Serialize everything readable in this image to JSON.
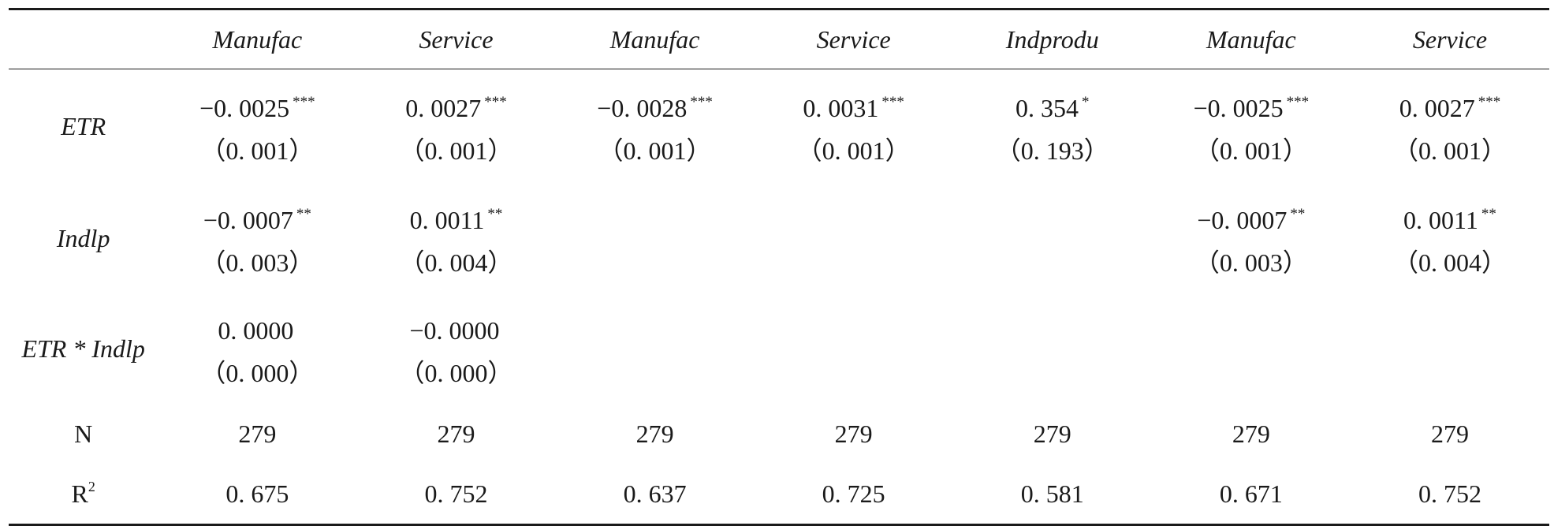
{
  "header": {
    "columns": [
      "",
      "Manufac",
      "Service",
      "Manufac",
      "Service",
      "Indprodu",
      "Manufac",
      "Service"
    ]
  },
  "rows": [
    {
      "label": "ETR",
      "cells": [
        {
          "coef": "−0. 0025",
          "stars": "***",
          "se": "（0. 001）"
        },
        {
          "coef": "0. 0027",
          "stars": "***",
          "se": "（0. 001）"
        },
        {
          "coef": "−0. 0028",
          "stars": "***",
          "se": "（0. 001）"
        },
        {
          "coef": "0. 0031",
          "stars": "***",
          "se": "（0. 001）"
        },
        {
          "coef": "0. 354",
          "stars": "*",
          "se": "（0. 193）"
        },
        {
          "coef": "−0. 0025",
          "stars": "***",
          "se": "（0. 001）"
        },
        {
          "coef": "0. 0027",
          "stars": "***",
          "se": "（0. 001）"
        }
      ]
    },
    {
      "label": "Indlp",
      "cells": [
        {
          "coef": "−0. 0007",
          "stars": "**",
          "se": "（0. 003）"
        },
        {
          "coef": "0. 0011",
          "stars": "**",
          "se": "（0. 004）"
        },
        {
          "coef": "",
          "stars": "",
          "se": ""
        },
        {
          "coef": "",
          "stars": "",
          "se": ""
        },
        {
          "coef": "",
          "stars": "",
          "se": ""
        },
        {
          "coef": "−0. 0007",
          "stars": "**",
          "se": "（0. 003）"
        },
        {
          "coef": "0. 0011",
          "stars": "**",
          "se": "（0. 004）"
        }
      ]
    },
    {
      "label": "ETR * Indlp",
      "cells": [
        {
          "coef": "0. 0000",
          "stars": "",
          "se": "（0. 000）"
        },
        {
          "coef": "−0. 0000",
          "stars": "",
          "se": "（0. 000）"
        },
        {
          "coef": "",
          "stars": "",
          "se": ""
        },
        {
          "coef": "",
          "stars": "",
          "se": ""
        },
        {
          "coef": "",
          "stars": "",
          "se": ""
        },
        {
          "coef": "",
          "stars": "",
          "se": ""
        },
        {
          "coef": "",
          "stars": "",
          "se": ""
        }
      ]
    }
  ],
  "n_row": {
    "label": "N",
    "values": [
      "279",
      "279",
      "279",
      "279",
      "279",
      "279",
      "279"
    ]
  },
  "r2_row": {
    "label_base": "R",
    "label_sup": "2",
    "values": [
      "0. 675",
      "0. 752",
      "0. 637",
      "0. 725",
      "0. 581",
      "0. 671",
      "0. 752"
    ]
  }
}
